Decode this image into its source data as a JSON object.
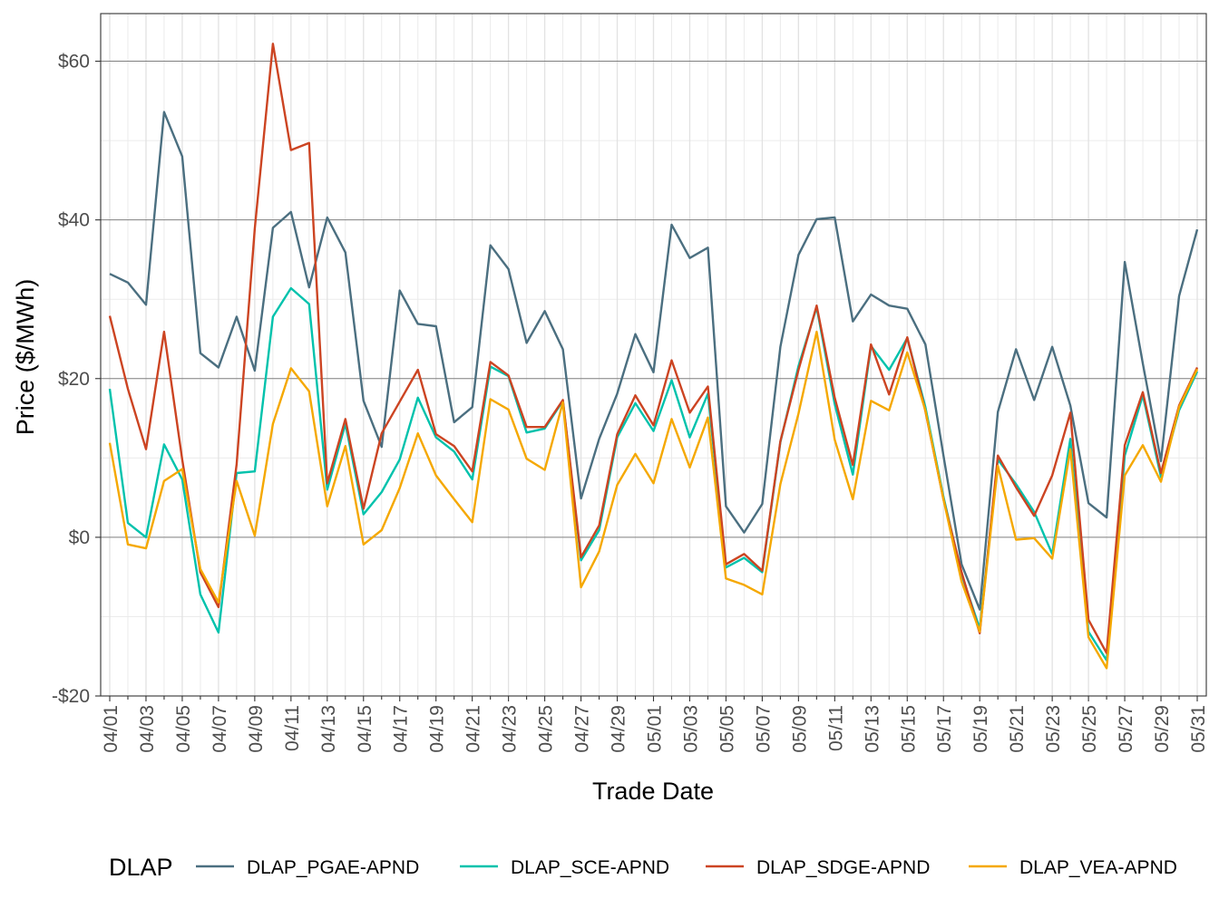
{
  "chart_data": {
    "type": "line",
    "title": "",
    "xlabel": "Trade Date",
    "ylabel": "Price ($/MWh)",
    "ylim": [
      -20,
      66
    ],
    "y_ticks": [
      -20,
      0,
      20,
      40,
      60
    ],
    "y_tick_labels": [
      "-$20",
      "$0",
      "$20",
      "$40",
      "$60"
    ],
    "x_tick_labels": [
      "04/01",
      "04/03",
      "04/05",
      "04/07",
      "04/09",
      "04/11",
      "04/13",
      "04/15",
      "04/17",
      "04/19",
      "04/21",
      "04/23",
      "04/25",
      "04/27",
      "04/29",
      "05/01",
      "05/03",
      "05/05",
      "05/07",
      "05/09",
      "05/11",
      "05/13",
      "05/15",
      "05/17",
      "05/19",
      "05/21",
      "05/23",
      "05/25",
      "05/27",
      "05/29",
      "05/31"
    ],
    "grid": true,
    "legend": {
      "title": "DLAP",
      "position": "bottom"
    },
    "dates": [
      "04/01",
      "04/02",
      "04/03",
      "04/04",
      "04/05",
      "04/06",
      "04/07",
      "04/08",
      "04/09",
      "04/10",
      "04/11",
      "04/12",
      "04/13",
      "04/14",
      "04/15",
      "04/16",
      "04/17",
      "04/18",
      "04/19",
      "04/20",
      "04/21",
      "04/22",
      "04/23",
      "04/24",
      "04/25",
      "04/26",
      "04/27",
      "04/28",
      "04/29",
      "04/30",
      "05/01",
      "05/02",
      "05/03",
      "05/04",
      "05/05",
      "05/06",
      "05/07",
      "05/08",
      "05/09",
      "05/10",
      "05/11",
      "05/12",
      "05/13",
      "05/14",
      "05/15",
      "05/16",
      "05/17",
      "05/18",
      "05/19",
      "05/20",
      "05/21",
      "05/22",
      "05/23",
      "05/24",
      "05/25",
      "05/26",
      "05/27",
      "05/28",
      "05/29",
      "05/30",
      "05/31"
    ],
    "series": [
      {
        "name": "DLAP_PGAE-APND",
        "color": "#4b6f80",
        "values": [
          33.2,
          32.1,
          29.3,
          53.6,
          48.0,
          23.2,
          21.4,
          27.8,
          21.0,
          39.0,
          41.0,
          31.5,
          40.3,
          35.9,
          17.2,
          11.4,
          31.1,
          26.9,
          26.6,
          14.5,
          16.4,
          36.8,
          33.8,
          24.5,
          28.5,
          23.7,
          4.9,
          12.4,
          18.1,
          25.6,
          20.8,
          39.4,
          35.2,
          36.5,
          3.9,
          0.6,
          4.2,
          24.0,
          35.6,
          40.1,
          40.3,
          27.2,
          30.6,
          29.2,
          28.8,
          24.3,
          10.3,
          -3.4,
          -9.1,
          15.8,
          23.7,
          17.3,
          24.0,
          16.6,
          4.3,
          2.5,
          34.7,
          21.9,
          9.6,
          30.4,
          38.8
        ]
      },
      {
        "name": "DLAP_SCE-APND",
        "color": "#00c2ac",
        "values": [
          18.7,
          1.8,
          0.0,
          11.7,
          7.3,
          -7.2,
          -12.0,
          8.1,
          8.3,
          27.8,
          31.4,
          29.4,
          6.0,
          14.3,
          2.9,
          5.7,
          9.8,
          17.6,
          12.6,
          10.8,
          7.3,
          21.5,
          20.3,
          13.2,
          13.7,
          17.2,
          -2.9,
          0.9,
          12.6,
          16.9,
          13.4,
          19.8,
          12.6,
          18.1,
          -3.8,
          -2.6,
          -4.4,
          12.0,
          21.6,
          29.0,
          16.8,
          7.9,
          24.1,
          21.1,
          25.1,
          16.4,
          5.1,
          -4.7,
          -11.5,
          9.8,
          6.7,
          3.2,
          -2.1,
          12.4,
          -11.9,
          -15.5,
          10.3,
          17.9,
          7.6,
          16.0,
          20.9
        ]
      },
      {
        "name": "DLAP_SDGE-APND",
        "color": "#cc4422",
        "values": [
          27.9,
          18.7,
          11.1,
          25.9,
          9.8,
          -4.4,
          -8.8,
          9.2,
          38.9,
          62.2,
          48.8,
          49.7,
          6.8,
          14.9,
          3.6,
          13.1,
          17.1,
          21.1,
          13.0,
          11.5,
          8.3,
          22.1,
          20.4,
          13.9,
          13.9,
          17.3,
          -2.5,
          1.5,
          13.0,
          17.9,
          14.1,
          22.3,
          15.7,
          19.0,
          -3.4,
          -2.1,
          -4.2,
          12.1,
          21.1,
          29.2,
          17.6,
          9.1,
          24.3,
          18.0,
          25.2,
          15.9,
          4.8,
          -4.4,
          -12.1,
          10.3,
          6.3,
          2.7,
          7.8,
          15.7,
          -10.4,
          -14.6,
          11.6,
          18.3,
          8.1,
          16.6,
          21.4
        ]
      },
      {
        "name": "DLAP_VEA-APND",
        "color": "#f5a800",
        "values": [
          11.9,
          -0.9,
          -1.4,
          7.1,
          8.6,
          -4.0,
          -8.2,
          7.1,
          0.2,
          14.3,
          21.3,
          18.4,
          3.9,
          11.5,
          -0.9,
          0.9,
          6.2,
          13.1,
          7.8,
          4.8,
          1.9,
          17.4,
          16.1,
          9.9,
          8.5,
          17.0,
          -6.3,
          -1.8,
          6.6,
          10.5,
          6.8,
          14.9,
          8.8,
          15.1,
          -5.2,
          -6.0,
          -7.2,
          6.7,
          15.6,
          25.9,
          12.3,
          4.8,
          17.2,
          16.0,
          23.3,
          16.0,
          4.8,
          -5.6,
          -11.9,
          9.0,
          -0.3,
          -0.1,
          -2.7,
          11.1,
          -12.6,
          -16.5,
          7.8,
          11.6,
          7.0,
          16.4,
          21.2
        ]
      }
    ]
  }
}
